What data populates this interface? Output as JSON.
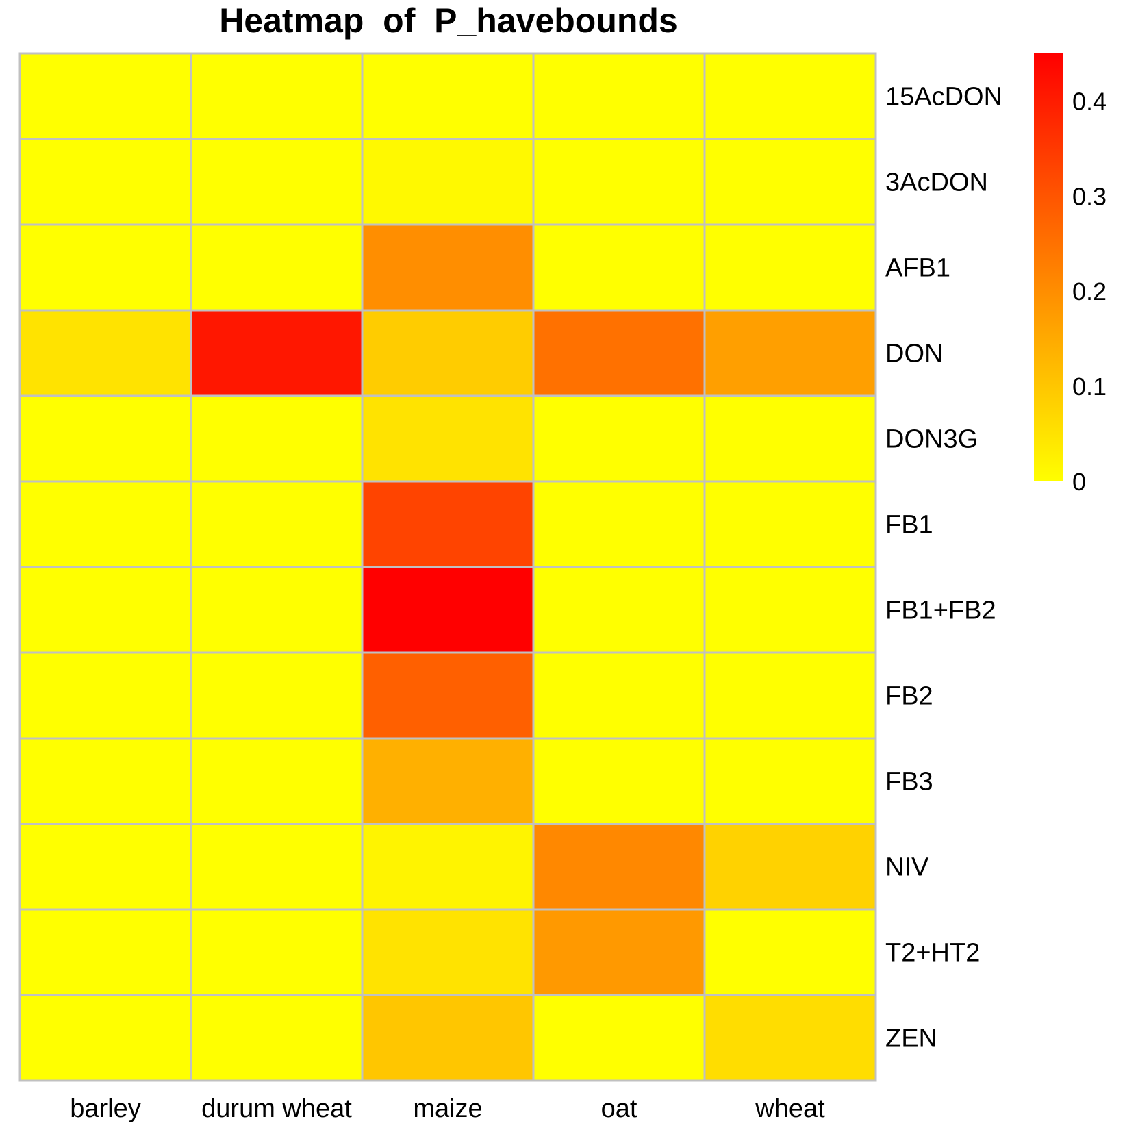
{
  "chart_data": {
    "type": "heatmap",
    "title": "Heatmap  of  P_havebounds",
    "xlabel": "",
    "ylabel": "",
    "columns": [
      "barley",
      "durum wheat",
      "maize",
      "oat",
      "wheat"
    ],
    "rows": [
      "15AcDON",
      "3AcDON",
      "AFB1",
      "DON",
      "DON3G",
      "FB1",
      "FB1+FB2",
      "FB2",
      "FB3",
      "NIV",
      "T2+HT2",
      "ZEN"
    ],
    "values": [
      [
        0.0,
        0.0,
        0.0,
        0.0,
        0.0
      ],
      [
        0.0,
        0.0,
        0.01,
        0.0,
        0.0
      ],
      [
        0.0,
        0.0,
        0.2,
        0.0,
        0.0
      ],
      [
        0.05,
        0.41,
        0.09,
        0.25,
        0.17
      ],
      [
        0.0,
        0.0,
        0.05,
        0.0,
        0.0
      ],
      [
        0.0,
        0.0,
        0.33,
        0.0,
        0.0
      ],
      [
        0.0,
        0.0,
        0.45,
        0.0,
        0.0
      ],
      [
        0.0,
        0.0,
        0.28,
        0.0,
        0.0
      ],
      [
        0.0,
        0.0,
        0.14,
        0.0,
        0.0
      ],
      [
        0.0,
        0.0,
        0.02,
        0.21,
        0.08
      ],
      [
        0.0,
        0.0,
        0.05,
        0.18,
        0.0
      ],
      [
        0.0,
        0.0,
        0.1,
        0.0,
        0.06
      ]
    ],
    "color_scale": {
      "low_color": "#ffff00",
      "high_color": "#ff0000",
      "range": [
        0,
        0.45
      ],
      "ticks": [
        0,
        0.1,
        0.2,
        0.3,
        0.4
      ],
      "tick_labels": [
        "0",
        "0.1",
        "0.2",
        "0.3",
        "0.4"
      ]
    },
    "cell_border_color": "#c0c0c0",
    "legend_position": "right",
    "grid": true
  }
}
